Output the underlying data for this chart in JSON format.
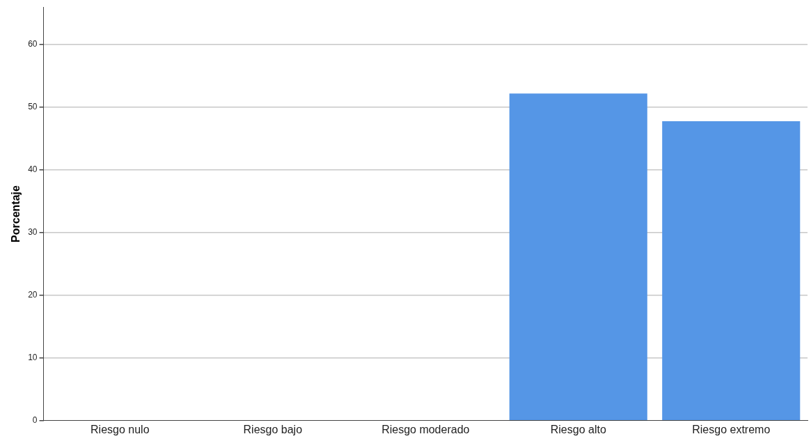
{
  "chart_data": {
    "type": "bar",
    "ylabel": "Porcentaje",
    "categories": [
      "Riesgo nulo",
      "Riesgo bajo",
      "Riesgo moderado",
      "Riesgo alto",
      "Riesgo extremo"
    ],
    "values": [
      0,
      0,
      0,
      52.2,
      47.8
    ],
    "color": "#5596e6",
    "ylim": [
      0,
      66
    ],
    "yticks": [
      0,
      10,
      20,
      30,
      40,
      50,
      60
    ],
    "grid": "y"
  }
}
